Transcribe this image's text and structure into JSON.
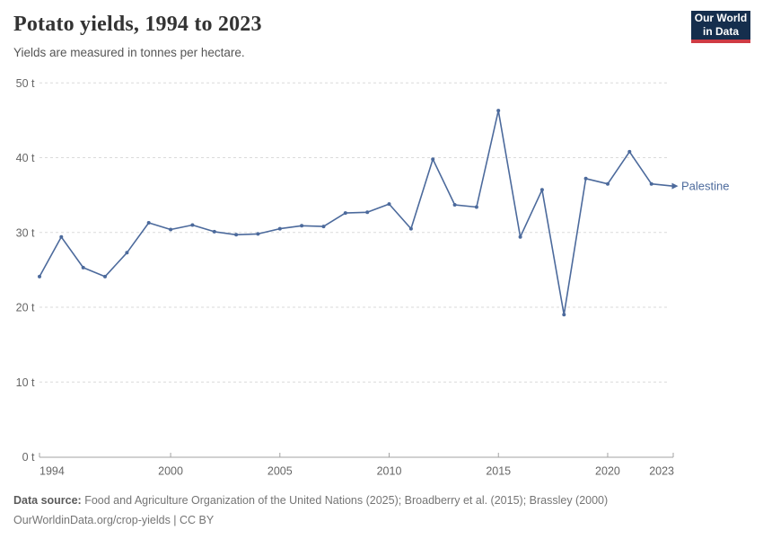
{
  "header": {
    "title": "Potato yields, 1994 to 2023",
    "subtitle": "Yields are measured in tonnes per hectare."
  },
  "logo": {
    "line1": "Our World",
    "line2": "in Data"
  },
  "colors": {
    "series_line": "#4c6a9c",
    "grid_line": "#dadada",
    "axis_line": "#a3a3a3",
    "tick_label": "#666666",
    "logo_bg": "#152e4d",
    "logo_accent": "#cf3b44"
  },
  "chart_data": {
    "type": "line",
    "title": "Potato yields, 1994 to 2023",
    "subtitle": "Yields are measured in tonnes per hectare.",
    "unit": "tonnes per hectare",
    "grid": "horizontal dashed",
    "legend_position": "end-of-line label",
    "ylim": [
      0,
      50
    ],
    "yticks": [
      0,
      10,
      20,
      30,
      40,
      50
    ],
    "ytick_labels": [
      "0 t",
      "10 t",
      "20 t",
      "30 t",
      "40 t",
      "50 t"
    ],
    "xticks": [
      1994,
      2000,
      2005,
      2010,
      2015,
      2020,
      2023
    ],
    "xtick_labels": [
      "1994",
      "2000",
      "2005",
      "2010",
      "2015",
      "2020",
      "2023"
    ],
    "x": [
      1994,
      1995,
      1996,
      1997,
      1998,
      1999,
      2000,
      2001,
      2002,
      2003,
      2004,
      2005,
      2006,
      2007,
      2008,
      2009,
      2010,
      2011,
      2012,
      2013,
      2014,
      2015,
      2016,
      2017,
      2018,
      2019,
      2020,
      2021,
      2022,
      2023
    ],
    "series": [
      {
        "name": "Palestine",
        "color": "#4c6a9c",
        "values": [
          24.1,
          29.4,
          25.3,
          24.1,
          27.3,
          31.3,
          30.4,
          31.0,
          30.1,
          29.7,
          29.8,
          30.5,
          30.9,
          30.8,
          32.6,
          32.7,
          33.8,
          30.5,
          39.8,
          33.7,
          33.4,
          46.3,
          29.4,
          35.7,
          19.0,
          37.2,
          36.5,
          40.8,
          36.5,
          36.2
        ]
      }
    ]
  },
  "footer": {
    "source_label": "Data source:",
    "source_text": "Food and Agriculture Organization of the United Nations (2025); Broadberry et al. (2015); Brassley (2000)",
    "link_text": "OurWorldinData.org/crop-yields | CC BY"
  }
}
